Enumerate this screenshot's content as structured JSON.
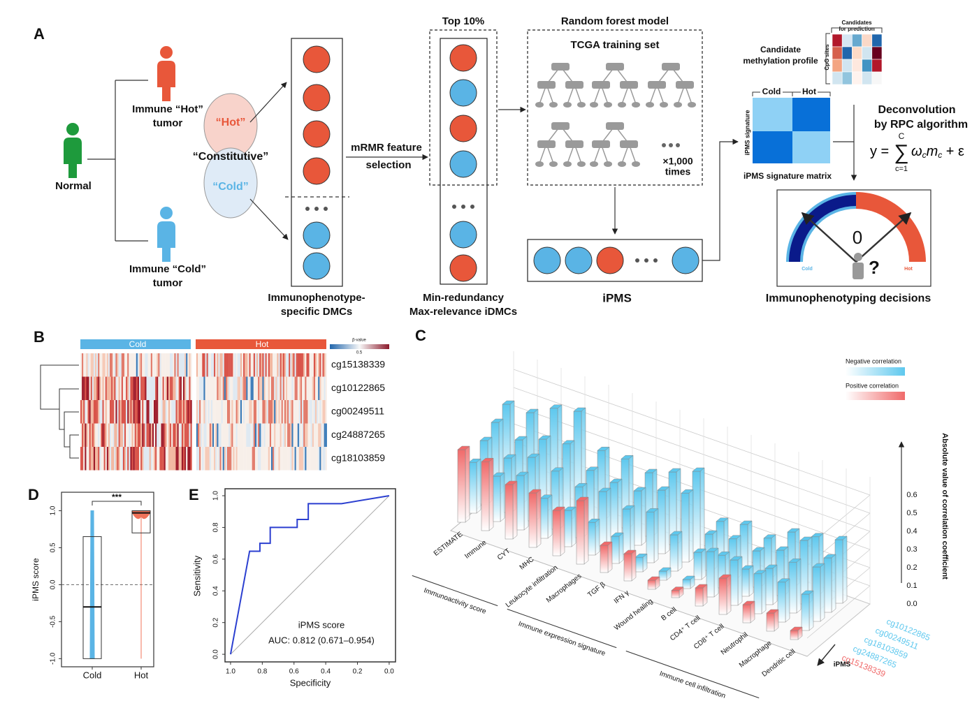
{
  "diagram": {
    "label": "A",
    "normal": "Normal",
    "hot_tumor": [
      "Immune “Hot”",
      "tumor"
    ],
    "cold_tumor": [
      "Immune “Cold”",
      "tumor"
    ],
    "venn": {
      "hot": "“Hot”",
      "constitutive": "“Constitutive”",
      "cold": "“Cold”"
    },
    "dmc_caption": [
      "Immunophenotype-",
      "specific DMCs"
    ],
    "mrmr": [
      "mRMR feature",
      "selection"
    ],
    "top": "Top 10%",
    "idmc_caption": [
      "Min-redundancy",
      "Max-relevance iDMCs"
    ],
    "rf_title": "Random forest model",
    "training": "TCGA training set",
    "times": [
      "×1,000",
      "times"
    ],
    "ipms": "iPMS",
    "candidate": [
      "Candidate",
      "methylation profile"
    ],
    "candidates_prediction": [
      "Candidates",
      "for prediction"
    ],
    "cpg": "CpG sites",
    "signature_columns": [
      "Cold",
      "Hot"
    ],
    "signature_row": "iPMS signature",
    "signature_caption": "iPMS signature matrix",
    "deconvolution": [
      "Deconvolution",
      "by RPC algorithm"
    ],
    "equation": {
      "lhs": "y =",
      "sum": "∑",
      "upper": "C",
      "lower": "c=1",
      "omega": "ω",
      "sub1": "c",
      "m": "m",
      "sub2": "c",
      "tail": " + ε"
    },
    "gauge": {
      "zero": "0",
      "cold": "Cold",
      "hot": "Hot",
      "question": "?"
    },
    "decisions": "Immunophenotyping decisions"
  },
  "heatmap": {
    "label": "B",
    "groups": [
      "Cold",
      "Hot"
    ],
    "rows": [
      "cg15138339",
      "cg10122865",
      "cg00249511",
      "cg24887265",
      "cg18103859"
    ],
    "colorbar_title": "β-value",
    "colorbar_mid": "0.5"
  },
  "chart_data": [
    {
      "type": "bar3d",
      "label": "C",
      "zlabel": "Absolute value of correlation coefficient",
      "series_axis_label": "iPMS",
      "legend": [
        "Negative correlation",
        "Positive correlation"
      ],
      "groups": [
        {
          "name": "Immunoactivity score",
          "categories": [
            "ESTIMATE",
            "Immune",
            "CYT",
            "MHC"
          ]
        },
        {
          "name": "Immune expression signature",
          "categories": [
            "Leukocyte infiltration",
            "Macrophages",
            "TGF β",
            "IFN γ",
            "Wound healing"
          ]
        },
        {
          "name": "Immune cell infiltration",
          "categories": [
            "B cell",
            "CD4⁺ T cell",
            "CD8⁺ T cell",
            "Neutrophil",
            "Macrophage",
            "Dendritic cell"
          ]
        }
      ],
      "series": [
        {
          "name": "cg10122865",
          "color": "#5ec8ee",
          "values": [
            0.45,
            0.45,
            0.52,
            0.55,
            0.38,
            0.38,
            0.35,
            0.4,
            0.45,
            0.22,
            0.25,
            0.22,
            0.3,
            0.32,
            0.35
          ]
        },
        {
          "name": "cg00249511",
          "color": "#5ec8ee",
          "values": [
            0.4,
            0.35,
            0.4,
            0.42,
            0.32,
            0.3,
            0.3,
            0.35,
            0.38,
            0.2,
            0.22,
            0.2,
            0.25,
            0.35,
            0.3
          ]
        },
        {
          "name": "cg18103859",
          "color": "#5ec8ee",
          "values": [
            0.35,
            0.3,
            0.35,
            0.32,
            0.28,
            0.3,
            0.25,
            0.28,
            0.2,
            0.15,
            0.18,
            0.15,
            0.2,
            0.28,
            0.3
          ]
        },
        {
          "name": "cg24887265",
          "color": "#5ec8ee",
          "values": [
            0.28,
            0.25,
            0.3,
            0.22,
            0.2,
            0.18,
            0.15,
            0.08,
            0.05,
            0.05,
            0.25,
            0.25,
            0.22,
            0.22,
            0.2
          ]
        },
        {
          "name": "cg15138339",
          "color": "#f06a6a",
          "values": [
            0.4,
            0.38,
            0.3,
            0.3,
            0.25,
            0.35,
            0.15,
            0.15,
            0.05,
            0.04,
            0.1,
            0.2,
            0.1,
            0.1,
            0.05
          ]
        }
      ],
      "zlim": [
        0,
        0.7
      ],
      "zticks": [
        {
          "value": 0,
          "label": "0.0"
        },
        0.1,
        0.2,
        0.3,
        0.4,
        0.5,
        0.6
      ]
    },
    {
      "type": "box",
      "label": "D",
      "ylabel": "iPMS score",
      "categories": [
        "Cold",
        "Hot"
      ],
      "boxes": [
        {
          "q1": -1.0,
          "median": -0.3,
          "q3": 0.65
        },
        {
          "q1": 0.7,
          "median": 0.97,
          "q3": 1.0
        }
      ],
      "annotation": "***",
      "refline": 0,
      "ylim": [
        -1.11,
        1.25
      ],
      "yticks": [
        {
          "value": -1,
          "label": "-1.0"
        },
        -0.5,
        {
          "value": 0,
          "label": "0.0"
        },
        0.5,
        {
          "value": 1,
          "label": "1.0"
        }
      ]
    },
    {
      "type": "line",
      "label": "E",
      "xlabel": "Specificity",
      "ylabel": "Sensitivity",
      "annotation": [
        "iPMS score",
        "AUC: 0.812 (0.671–0.954)"
      ],
      "color": "#2b3fd0",
      "x": [
        1,
        0.88,
        0.815,
        0.815,
        0.75,
        0.75,
        0.58,
        0.58,
        0.51,
        0.51,
        0.3,
        0
      ],
      "values": [
        0,
        0.65,
        0.65,
        0.7,
        0.7,
        0.8,
        0.8,
        0.85,
        0.85,
        0.95,
        0.95,
        1
      ],
      "xlim": [
        1.035,
        -0.04
      ],
      "ylim": [
        -0.048,
        1.044
      ],
      "xticks": [
        {
          "value": 1,
          "label": "1.0"
        },
        0.8,
        0.6,
        0.4,
        0.2,
        {
          "value": 0,
          "label": "0.0"
        }
      ],
      "yticks": [
        {
          "value": 0,
          "label": "0.0"
        },
        0.2,
        0.4,
        0.6,
        0.8,
        {
          "value": 1,
          "label": "1.0"
        }
      ]
    }
  ]
}
